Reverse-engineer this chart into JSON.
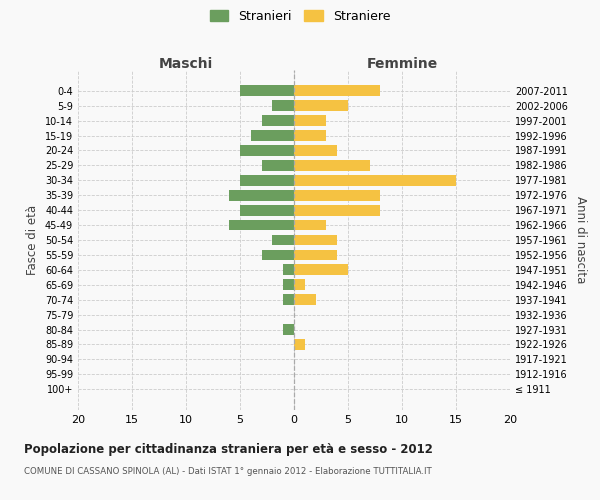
{
  "age_groups": [
    "100+",
    "95-99",
    "90-94",
    "85-89",
    "80-84",
    "75-79",
    "70-74",
    "65-69",
    "60-64",
    "55-59",
    "50-54",
    "45-49",
    "40-44",
    "35-39",
    "30-34",
    "25-29",
    "20-24",
    "15-19",
    "10-14",
    "5-9",
    "0-4"
  ],
  "birth_years": [
    "≤ 1911",
    "1912-1916",
    "1917-1921",
    "1922-1926",
    "1927-1931",
    "1932-1936",
    "1937-1941",
    "1942-1946",
    "1947-1951",
    "1952-1956",
    "1957-1961",
    "1962-1966",
    "1967-1971",
    "1972-1976",
    "1977-1981",
    "1982-1986",
    "1987-1991",
    "1992-1996",
    "1997-2001",
    "2002-2006",
    "2007-2011"
  ],
  "males": [
    0,
    0,
    0,
    0,
    1,
    0,
    1,
    1,
    1,
    3,
    2,
    6,
    5,
    6,
    5,
    3,
    5,
    4,
    3,
    2,
    5
  ],
  "females": [
    0,
    0,
    0,
    1,
    0,
    0,
    2,
    1,
    5,
    4,
    4,
    3,
    8,
    8,
    15,
    7,
    4,
    3,
    3,
    5,
    8
  ],
  "male_color": "#6b9e5e",
  "female_color": "#f5c242",
  "background_color": "#f9f9f9",
  "grid_color": "#cccccc",
  "title": "Popolazione per cittadinanza straniera per età e sesso - 2012",
  "subtitle": "COMUNE DI CASSANO SPINOLA (AL) - Dati ISTAT 1° gennaio 2012 - Elaborazione TUTTITALIA.IT",
  "ylabel_left": "Fasce di età",
  "ylabel_right": "Anni di nascita",
  "xlabel_left": "Maschi",
  "xlabel_right": "Femmine",
  "legend_male": "Stranieri",
  "legend_female": "Straniere",
  "xlim": 20
}
